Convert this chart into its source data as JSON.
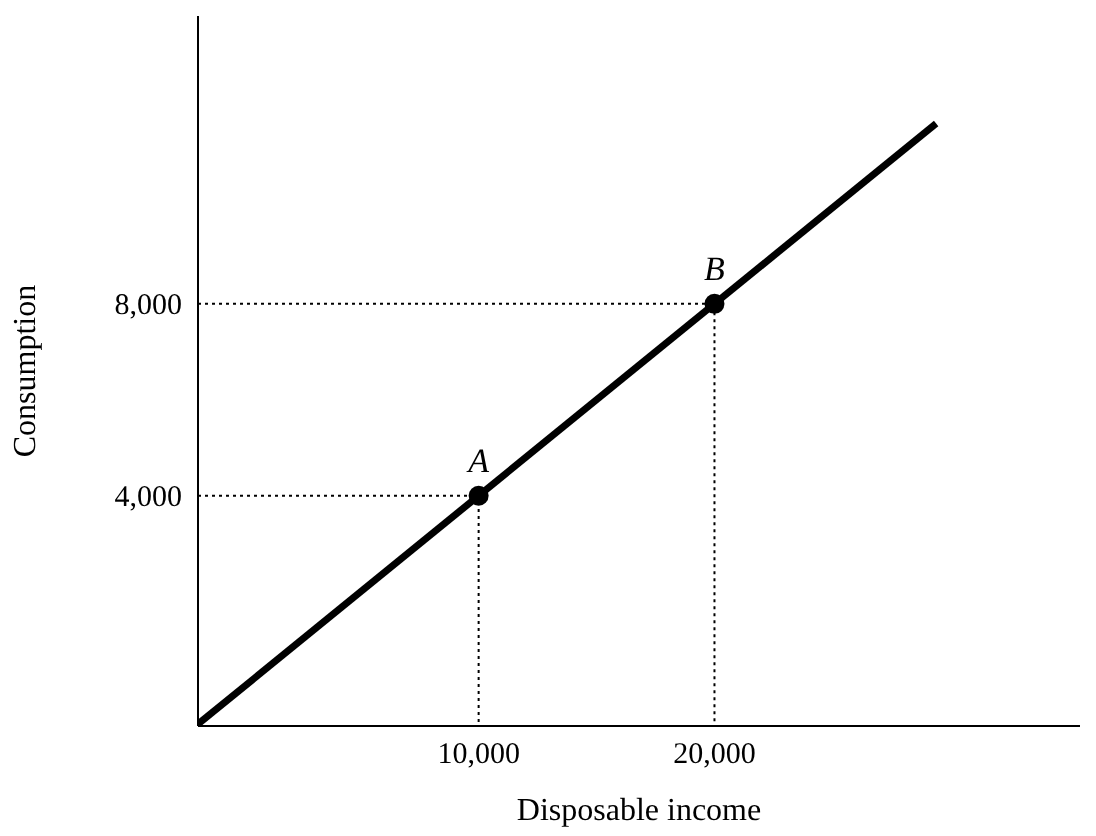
{
  "chart_data": {
    "type": "line",
    "xlabel": "Disposable income",
    "ylabel": "Consumption",
    "xlim": [
      -1900,
      35500
    ],
    "ylim": [
      -800,
      14000
    ],
    "xticks": [
      {
        "value": 10000,
        "label": "10,000"
      },
      {
        "value": 20000,
        "label": "20,000"
      }
    ],
    "yticks": [
      {
        "value": 4000,
        "label": "4,000"
      },
      {
        "value": 8000,
        "label": "8,000"
      }
    ],
    "series": [
      {
        "color": "#000000",
        "x": [
          -1900,
          29400
        ],
        "values": [
          -760,
          11760
        ]
      },
      {
        "type": "line",
        "color": "#000000",
        "line_style": "dotted",
        "x": [
          -1900,
          10000,
          10000
        ],
        "values": [
          4000,
          4000,
          -800
        ]
      },
      {
        "type": "line",
        "color": "#000000",
        "line_style": "dotted",
        "x": [
          -1900,
          20000,
          20000
        ],
        "values": [
          8000,
          8000,
          -800
        ]
      },
      {
        "type": "scatter",
        "color": "#000000",
        "marker": "circle",
        "x": [
          10000,
          20000
        ],
        "values": [
          4000,
          8000
        ]
      }
    ],
    "annotations": [
      {
        "text": "A",
        "x": 10000,
        "y": 4000
      },
      {
        "text": "B",
        "x": 20000,
        "y": 8000
      }
    ]
  }
}
